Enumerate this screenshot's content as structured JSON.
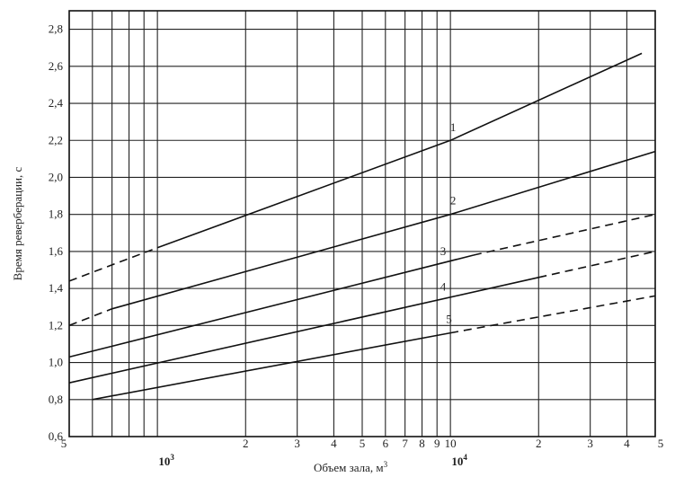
{
  "chart_data": {
    "type": "line",
    "xscale": "log",
    "xlim": [
      500,
      50000
    ],
    "ylim": [
      0.6,
      2.9
    ],
    "xlabel": "Объем зала, м",
    "xlabel_sup": "3",
    "ylabel": "Время реверберации, с",
    "grid": true,
    "yticks": [
      {
        "value": 0.6,
        "label": "0,6"
      },
      {
        "value": 0.8,
        "label": "0,8"
      },
      {
        "value": 1.0,
        "label": "1,0"
      },
      {
        "value": 1.2,
        "label": "1,2"
      },
      {
        "value": 1.4,
        "label": "1,4"
      },
      {
        "value": 1.6,
        "label": "1,6"
      },
      {
        "value": 1.8,
        "label": "1,8"
      },
      {
        "value": 2.0,
        "label": "2,0"
      },
      {
        "value": 2.2,
        "label": "2,2"
      },
      {
        "value": 2.4,
        "label": "2,4"
      },
      {
        "value": 2.6,
        "label": "2,6"
      },
      {
        "value": 2.8,
        "label": "2,8"
      }
    ],
    "xticks": [
      {
        "value": 500,
        "label": "5"
      },
      {
        "value": 2000,
        "label": "2"
      },
      {
        "value": 3000,
        "label": "3"
      },
      {
        "value": 4000,
        "label": "4"
      },
      {
        "value": 5000,
        "label": "5"
      },
      {
        "value": 6000,
        "label": "6"
      },
      {
        "value": 7000,
        "label": "7"
      },
      {
        "value": 8000,
        "label": "8"
      },
      {
        "value": 9000,
        "label": "9"
      },
      {
        "value": 10000,
        "label": "10"
      },
      {
        "value": 20000,
        "label": "2"
      },
      {
        "value": 30000,
        "label": "3"
      },
      {
        "value": 40000,
        "label": "4"
      },
      {
        "value": 50000,
        "label": "5"
      }
    ],
    "xmajor": [
      {
        "value": 1000,
        "base": "10",
        "exp": "3"
      },
      {
        "value": 10000,
        "base": "10",
        "exp": "4"
      }
    ],
    "series": [
      {
        "name": "1",
        "x": [
          500,
          1000,
          10000,
          45000
        ],
        "y": [
          1.44,
          1.62,
          2.2,
          2.67
        ],
        "dashed_until": 1000,
        "dashed_after": null
      },
      {
        "name": "2",
        "x": [
          500,
          700,
          10000,
          50000
        ],
        "y": [
          1.2,
          1.29,
          1.8,
          2.14
        ],
        "dashed_until": 700,
        "dashed_after": null
      },
      {
        "name": "3",
        "x": [
          500,
          12000,
          50000
        ],
        "y": [
          1.03,
          1.58,
          1.8
        ],
        "dashed_until": null,
        "dashed_after": 12000
      },
      {
        "name": "4",
        "x": [
          500,
          20000,
          50000
        ],
        "y": [
          0.89,
          1.46,
          1.6
        ],
        "dashed_until": null,
        "dashed_after": 20000
      },
      {
        "name": "5",
        "x": [
          600,
          10000,
          50000
        ],
        "y": [
          0.8,
          1.16,
          1.36
        ],
        "dashed_until": null,
        "dashed_after": 10000
      }
    ]
  }
}
